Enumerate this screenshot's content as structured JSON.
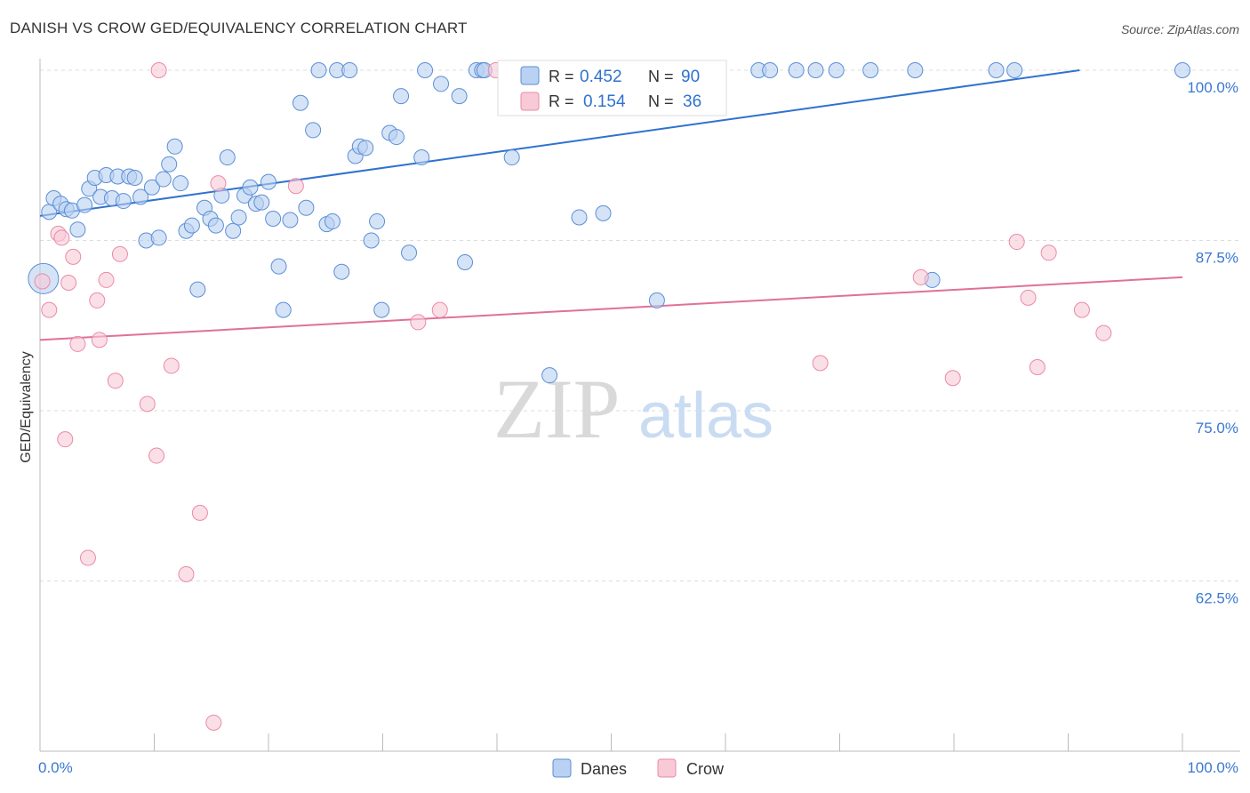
{
  "header": {
    "title": "DANISH VS CROW GED/EQUIVALENCY CORRELATION CHART",
    "source": "Source: ZipAtlas.com"
  },
  "watermark": {
    "zip": "ZIP",
    "atlas": "atlas"
  },
  "legend_box": {
    "rows": [
      {
        "r_label": "R = ",
        "r_value": "0.452",
        "n_label": "N = ",
        "n_value": "90"
      },
      {
        "r_label": "R = ",
        "r_value": "0.154",
        "n_label": "N = ",
        "n_value": "36"
      }
    ]
  },
  "bottom_legend": {
    "danes": "Danes",
    "crow": "Crow"
  },
  "chart_data": {
    "type": "scatter",
    "title": "DANISH VS CROW GED/EQUIVALENCY CORRELATION CHART",
    "xlabel": "",
    "ylabel": "GED/Equivalency",
    "xlim": [
      0,
      100
    ],
    "ylim": [
      50,
      102
    ],
    "x_tick_labels": [
      "0.0%",
      "100.0%"
    ],
    "y_ticks": [
      62.5,
      75.0,
      87.5,
      100.0
    ],
    "y_tick_labels": [
      "62.5%",
      "75.0%",
      "87.5%",
      "100.0%"
    ],
    "grid": true,
    "legend_position": "bottom",
    "colors": {
      "danes": "#5b8fd6",
      "danes_fill": "#b9d1f2",
      "danes_line": "#2f72cf",
      "crow": "#e98aa8",
      "crow_fill": "#f8c9d7",
      "crow_line": "#e0709a"
    },
    "series": [
      {
        "name": "Danes",
        "r": 0.452,
        "n": 90,
        "trend": [
          [
            0,
            89.3
          ],
          [
            91,
            100.0
          ]
        ],
        "points": [
          [
            0.3,
            84.7
          ],
          [
            0.8,
            89.6
          ],
          [
            1.2,
            90.6
          ],
          [
            1.8,
            90.2
          ],
          [
            2.3,
            89.8
          ],
          [
            2.8,
            89.7
          ],
          [
            3.3,
            88.3
          ],
          [
            3.9,
            90.1
          ],
          [
            4.3,
            91.3
          ],
          [
            4.8,
            92.1
          ],
          [
            5.3,
            90.7
          ],
          [
            5.8,
            92.3
          ],
          [
            6.3,
            90.6
          ],
          [
            6.8,
            92.2
          ],
          [
            7.3,
            90.4
          ],
          [
            7.8,
            92.2
          ],
          [
            8.3,
            92.1
          ],
          [
            8.8,
            90.7
          ],
          [
            9.3,
            87.5
          ],
          [
            9.8,
            91.4
          ],
          [
            10.4,
            87.7
          ],
          [
            10.8,
            92.0
          ],
          [
            11.3,
            93.1
          ],
          [
            11.8,
            94.4
          ],
          [
            12.3,
            91.7
          ],
          [
            12.8,
            88.2
          ],
          [
            13.3,
            88.6
          ],
          [
            13.8,
            83.9
          ],
          [
            14.4,
            89.9
          ],
          [
            14.9,
            89.1
          ],
          [
            15.4,
            88.6
          ],
          [
            15.9,
            90.8
          ],
          [
            16.4,
            93.6
          ],
          [
            16.9,
            88.2
          ],
          [
            17.4,
            89.2
          ],
          [
            17.9,
            90.8
          ],
          [
            18.4,
            91.4
          ],
          [
            18.9,
            90.2
          ],
          [
            19.4,
            90.3
          ],
          [
            20.0,
            91.8
          ],
          [
            20.4,
            89.1
          ],
          [
            20.9,
            85.6
          ],
          [
            21.3,
            82.4
          ],
          [
            21.9,
            89.0
          ],
          [
            22.8,
            97.6
          ],
          [
            23.3,
            89.9
          ],
          [
            23.9,
            95.6
          ],
          [
            24.4,
            100.0
          ],
          [
            25.1,
            88.7
          ],
          [
            25.6,
            88.9
          ],
          [
            26.0,
            100.0
          ],
          [
            26.4,
            85.2
          ],
          [
            27.1,
            100.0
          ],
          [
            27.6,
            93.7
          ],
          [
            28.0,
            94.4
          ],
          [
            28.5,
            94.3
          ],
          [
            29.0,
            87.5
          ],
          [
            29.5,
            88.9
          ],
          [
            29.9,
            82.4
          ],
          [
            30.6,
            95.4
          ],
          [
            31.2,
            95.1
          ],
          [
            31.6,
            98.1
          ],
          [
            32.3,
            86.6
          ],
          [
            33.4,
            93.6
          ],
          [
            33.7,
            100.0
          ],
          [
            35.1,
            99.0
          ],
          [
            36.7,
            98.1
          ],
          [
            37.2,
            85.9
          ],
          [
            38.2,
            100.0
          ],
          [
            38.7,
            100.0
          ],
          [
            38.9,
            100.0
          ],
          [
            41.3,
            93.6
          ],
          [
            44.6,
            77.6
          ],
          [
            47.2,
            89.2
          ],
          [
            49.3,
            89.5
          ],
          [
            50.6,
            100.0
          ],
          [
            54.0,
            83.1
          ],
          [
            56.9,
            100.0
          ],
          [
            58.7,
            100.0
          ],
          [
            62.9,
            100.0
          ],
          [
            63.9,
            100.0
          ],
          [
            66.2,
            100.0
          ],
          [
            67.9,
            100.0
          ],
          [
            69.7,
            100.0
          ],
          [
            72.7,
            100.0
          ],
          [
            76.6,
            100.0
          ],
          [
            78.1,
            84.6
          ],
          [
            83.7,
            100.0
          ],
          [
            85.3,
            100.0
          ],
          [
            100.0,
            100.0
          ]
        ]
      },
      {
        "name": "Crow",
        "r": 0.154,
        "n": 36,
        "trend": [
          [
            0,
            80.2
          ],
          [
            100,
            84.8
          ]
        ],
        "points": [
          [
            0.2,
            84.5
          ],
          [
            0.8,
            82.4
          ],
          [
            1.6,
            88.0
          ],
          [
            1.9,
            87.7
          ],
          [
            2.2,
            72.9
          ],
          [
            2.5,
            84.4
          ],
          [
            2.9,
            86.3
          ],
          [
            3.3,
            79.9
          ],
          [
            4.2,
            64.2
          ],
          [
            5.0,
            83.1
          ],
          [
            5.2,
            80.2
          ],
          [
            5.8,
            84.6
          ],
          [
            6.6,
            77.2
          ],
          [
            7.0,
            86.5
          ],
          [
            9.4,
            75.5
          ],
          [
            10.2,
            71.7
          ],
          [
            10.4,
            100.0
          ],
          [
            11.5,
            78.3
          ],
          [
            12.8,
            63.0
          ],
          [
            14.0,
            67.5
          ],
          [
            15.2,
            52.1
          ],
          [
            15.6,
            91.7
          ],
          [
            22.4,
            91.5
          ],
          [
            33.1,
            81.5
          ],
          [
            35.0,
            82.4
          ],
          [
            39.9,
            100.0
          ],
          [
            58.3,
            100.0
          ],
          [
            68.3,
            78.5
          ],
          [
            77.1,
            84.8
          ],
          [
            79.9,
            77.4
          ],
          [
            85.5,
            87.4
          ],
          [
            86.5,
            83.3
          ],
          [
            87.3,
            78.2
          ],
          [
            88.3,
            86.6
          ],
          [
            91.2,
            82.4
          ],
          [
            93.1,
            80.7
          ]
        ]
      }
    ]
  }
}
